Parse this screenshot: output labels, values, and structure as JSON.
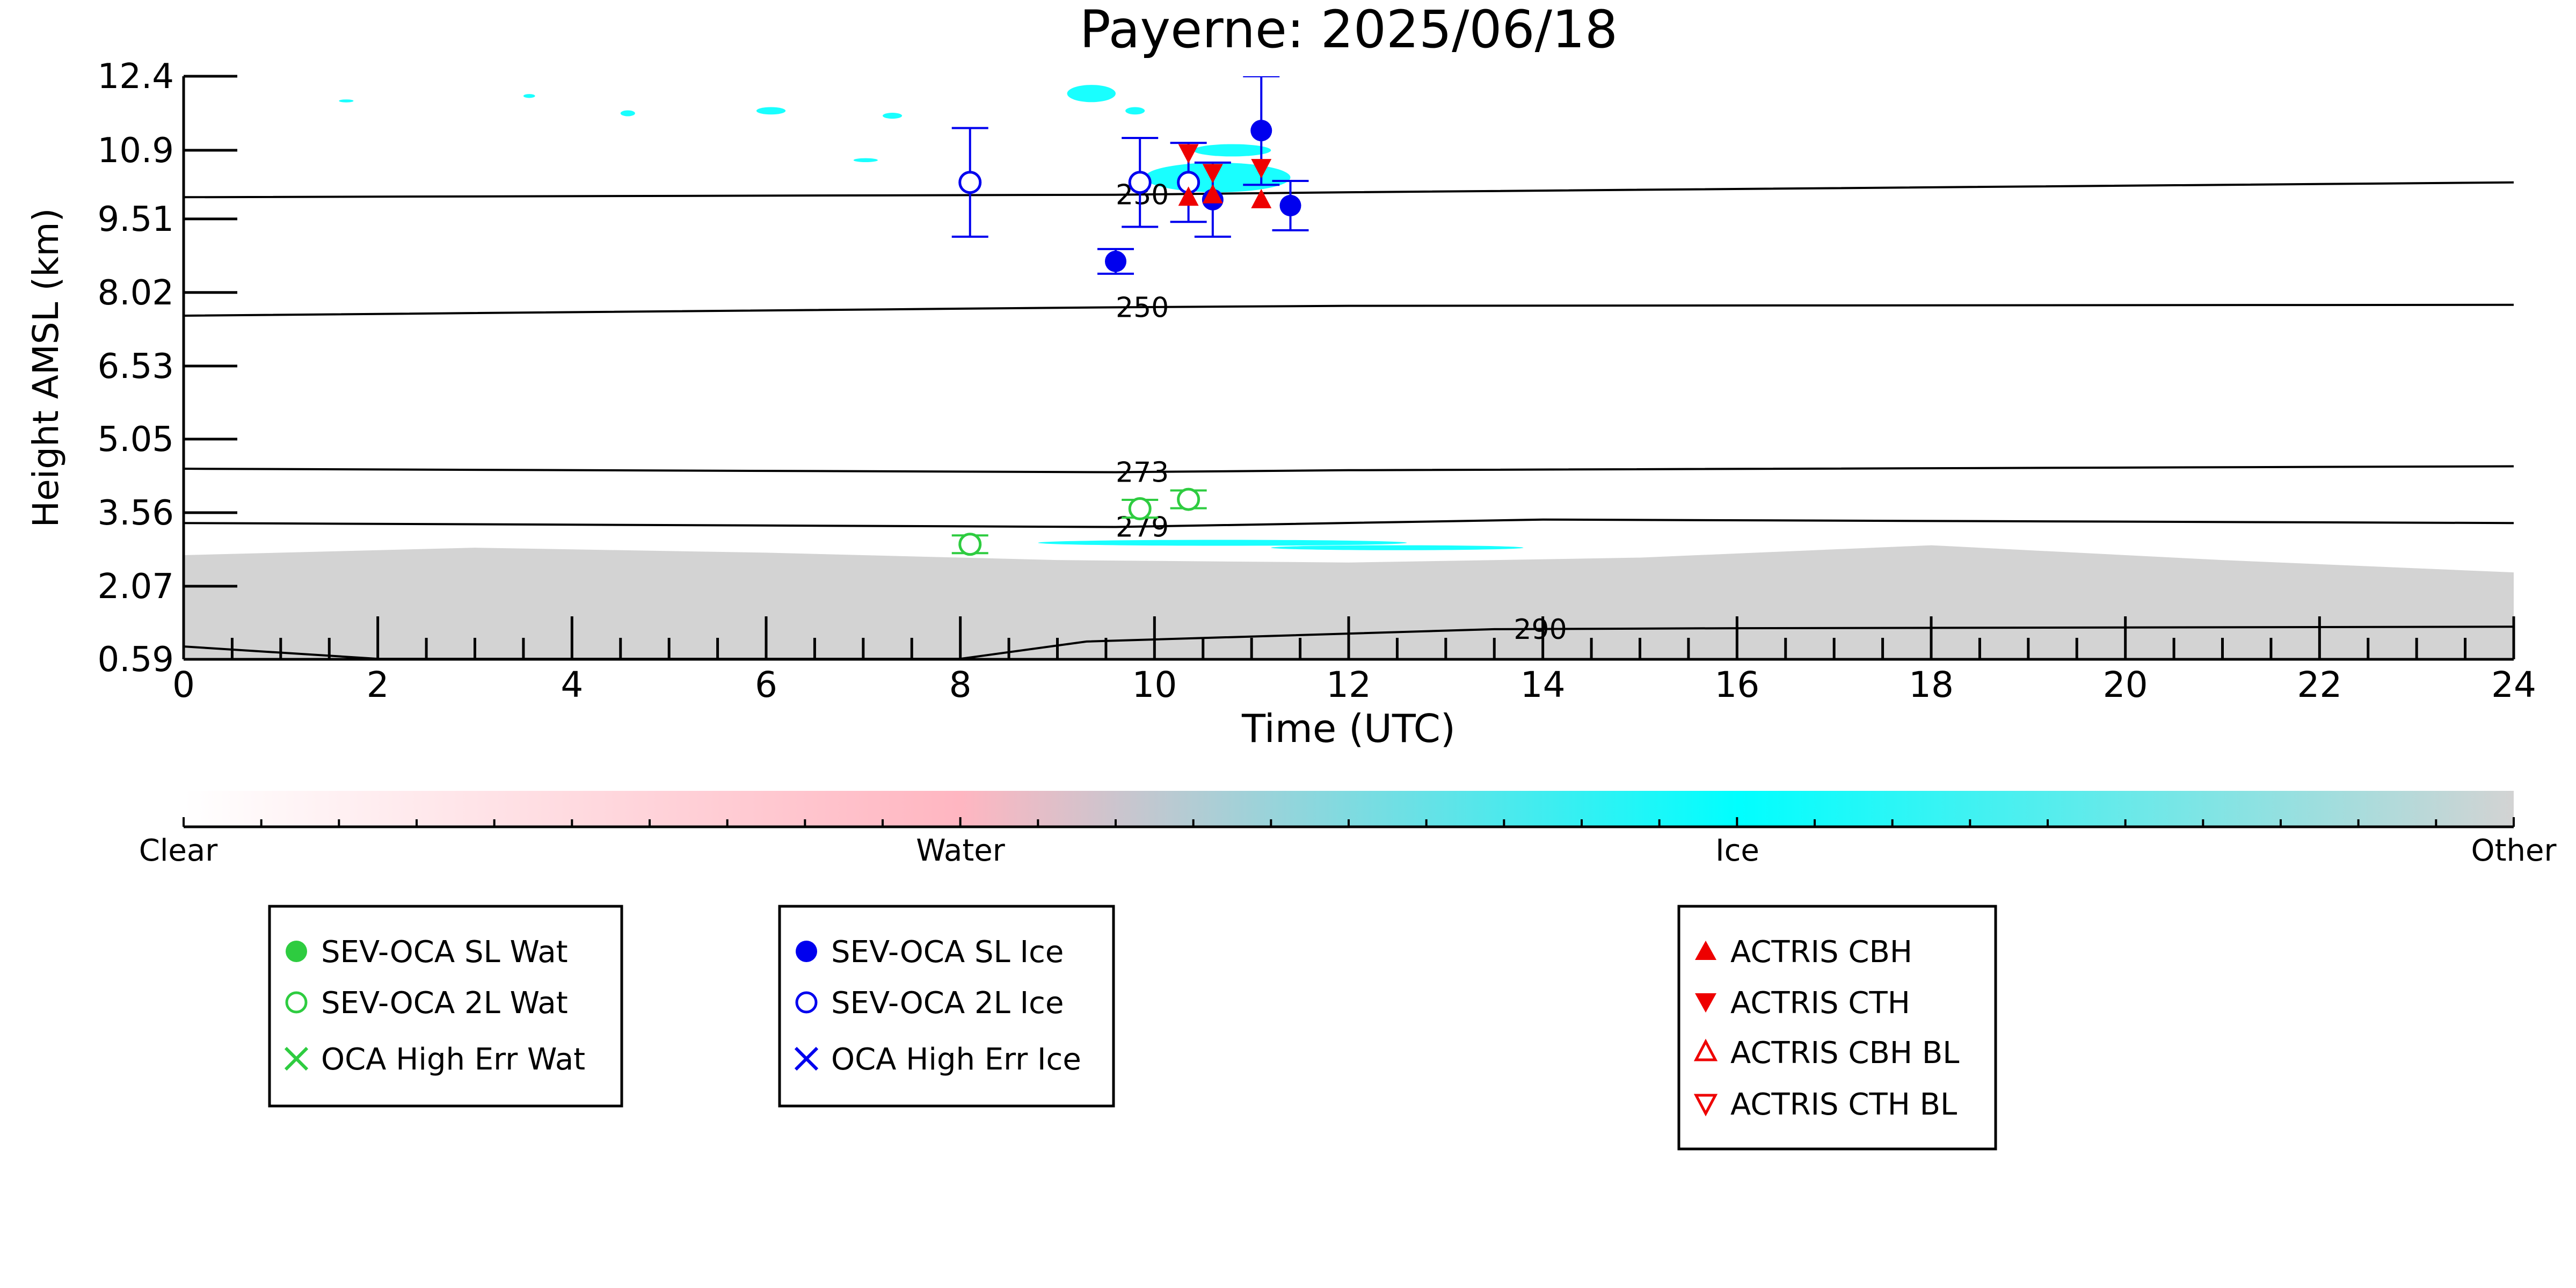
{
  "chart_data": {
    "type": "scatter",
    "title": "Payerne: 2025/06/18",
    "xlabel": "Time (UTC)",
    "ylabel": "Height AMSL (km)",
    "xlim": [
      0,
      24
    ],
    "ylim": [
      0.59,
      12.4
    ],
    "x_ticks": [
      0,
      2,
      4,
      6,
      8,
      10,
      12,
      14,
      16,
      18,
      20,
      22,
      24
    ],
    "y_ticks": [
      "0.59",
      "2.07",
      "3.56",
      "5.05",
      "6.53",
      "8.02",
      "9.51",
      "10.9",
      "12.4"
    ],
    "isotherms": [
      {
        "label": "230",
        "label_x": 9.6,
        "points": [
          [
            0,
            9.95
          ],
          [
            9.6,
            10.0
          ],
          [
            12,
            10.05
          ],
          [
            24,
            10.25
          ]
        ]
      },
      {
        "label": "250",
        "label_x": 9.6,
        "points": [
          [
            0,
            7.55
          ],
          [
            9.6,
            7.72
          ],
          [
            12,
            7.75
          ],
          [
            24,
            7.77
          ]
        ]
      },
      {
        "label": "273",
        "label_x": 9.6,
        "points": [
          [
            0,
            4.45
          ],
          [
            9.6,
            4.38
          ],
          [
            12,
            4.42
          ],
          [
            24,
            4.5
          ]
        ]
      },
      {
        "label": "279",
        "label_x": 9.6,
        "points": [
          [
            0,
            3.35
          ],
          [
            9.6,
            3.27
          ],
          [
            14,
            3.42
          ],
          [
            24,
            3.35
          ]
        ]
      },
      {
        "label": "290",
        "label_x": 13.7,
        "points": [
          [
            0,
            0.85
          ],
          [
            2,
            0.6
          ],
          [
            8,
            0.6
          ],
          [
            9.3,
            0.95
          ],
          [
            13.5,
            1.2
          ],
          [
            16,
            1.22
          ],
          [
            24,
            1.25
          ]
        ]
      }
    ],
    "series": [
      {
        "name": "SEV-OCA SL Wat",
        "color": "#2ecc40",
        "marker": "filled-circle",
        "points": []
      },
      {
        "name": "SEV-OCA 2L Wat",
        "color": "#2ecc40",
        "marker": "open-circle",
        "points": [
          {
            "x": 8.1,
            "y": 2.92,
            "err": 0.18
          },
          {
            "x": 9.85,
            "y": 3.64,
            "err": 0.18
          },
          {
            "x": 10.35,
            "y": 3.83,
            "err": 0.18
          }
        ]
      },
      {
        "name": "OCA High Err Wat",
        "color": "#2ecc40",
        "marker": "x",
        "points": []
      },
      {
        "name": "SEV-OCA SL Ice",
        "color": "#0000ee",
        "marker": "filled-circle",
        "points": [
          {
            "x": 9.6,
            "y": 8.65,
            "err": 0.25
          },
          {
            "x": 10.6,
            "y": 9.9,
            "err": 0.75
          },
          {
            "x": 11.1,
            "y": 11.3,
            "err": 1.1
          },
          {
            "x": 11.4,
            "y": 9.78,
            "err": 0.5
          }
        ]
      },
      {
        "name": "SEV-OCA 2L Ice",
        "color": "#0000ee",
        "marker": "open-circle",
        "points": [
          {
            "x": 8.1,
            "y": 10.25,
            "err": 1.1
          },
          {
            "x": 9.85,
            "y": 10.25,
            "err": 0.9
          },
          {
            "x": 10.35,
            "y": 10.25,
            "err": 0.8
          }
        ]
      },
      {
        "name": "OCA High Err Ice",
        "color": "#0000ee",
        "marker": "x",
        "points": []
      },
      {
        "name": "ACTRIS CBH",
        "color": "#ee0000",
        "marker": "triangle-up",
        "points": [
          {
            "x": 10.35,
            "y": 9.95
          },
          {
            "x": 10.6,
            "y": 10.0
          },
          {
            "x": 11.1,
            "y": 9.9
          }
        ]
      },
      {
        "name": "ACTRIS CTH",
        "color": "#ee0000",
        "marker": "triangle-down",
        "points": [
          {
            "x": 10.35,
            "y": 10.85
          },
          {
            "x": 10.6,
            "y": 10.45
          },
          {
            "x": 11.1,
            "y": 10.55
          }
        ]
      },
      {
        "name": "ACTRIS CBH BL",
        "color": "#ee0000",
        "marker": "open-triangle-up",
        "points": []
      },
      {
        "name": "ACTRIS CTH BL",
        "color": "#ee0000",
        "marker": "open-triangle-down",
        "points": []
      }
    ],
    "colorbar": {
      "labels": [
        "Clear",
        "Water",
        "Ice",
        "Other"
      ],
      "colors": [
        "#ffffff",
        "#ffb6c1",
        "#00ffff",
        "#d3d3d3"
      ]
    },
    "legends": [
      [
        "SEV-OCA SL Wat",
        "SEV-OCA 2L Wat",
        "OCA High Err Wat"
      ],
      [
        "SEV-OCA SL Ice",
        "SEV-OCA 2L Ice",
        "OCA High Err Ice"
      ],
      [
        "ACTRIS CBH",
        "ACTRIS CTH",
        "ACTRIS CBH BL",
        "ACTRIS CTH BL"
      ]
    ],
    "background_classification": {
      "other_layer": {
        "color": "#d3d3d3",
        "x": [
          0,
          24
        ],
        "top_km": [
          2.7,
          2.85,
          2.75,
          2.6,
          2.55,
          2.65,
          2.9,
          2.6,
          2.35
        ]
      },
      "ice_patches_color": "#00ffff",
      "water_color": "#ffb6c1"
    }
  }
}
